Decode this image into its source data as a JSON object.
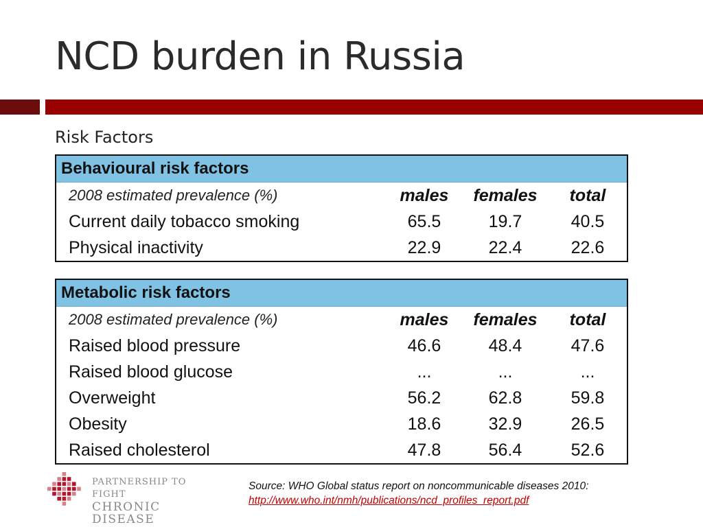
{
  "slide": {
    "title": "NCD burden in Russia",
    "subtitle": "Risk Factors"
  },
  "behavioural": {
    "heading": "Behavioural risk factors",
    "columns": {
      "label": "2008 estimated prevalence (%)",
      "males": "males",
      "females": "females",
      "total": "total"
    },
    "rows": [
      {
        "label": "Current daily tobacco smoking",
        "males": "65.5",
        "females": "19.7",
        "total": "40.5"
      },
      {
        "label": "Physical inactivity",
        "males": "22.9",
        "females": "22.4",
        "total": "22.6"
      }
    ]
  },
  "metabolic": {
    "heading": "Metabolic risk factors",
    "columns": {
      "label": "2008 estimated prevalence (%)",
      "males": "males",
      "females": "females",
      "total": "total"
    },
    "rows": [
      {
        "label": "Raised blood pressure",
        "males": "46.6",
        "females": "48.4",
        "total": "47.6"
      },
      {
        "label": "Raised blood glucose",
        "males": "...",
        "females": "...",
        "total": "..."
      },
      {
        "label": "Overweight",
        "males": "56.2",
        "females": "62.8",
        "total": "59.8"
      },
      {
        "label": "Obesity",
        "males": "18.6",
        "females": "32.9",
        "total": "26.5"
      },
      {
        "label": "Raised cholesterol",
        "males": "47.8",
        "females": "56.4",
        "total": "52.6"
      }
    ]
  },
  "logo": {
    "line1": "PARTNERSHIP TO FIGHT",
    "line2": "CHRONIC DISEASE",
    "color": "#b3172c"
  },
  "source": {
    "text": "Source:  WHO Global status report on noncommunicable diseases 2010:",
    "link": "http://www.who.int/nmh/publications/ncd_profiles_report.pdf"
  },
  "colors": {
    "accent_bar": "#990000",
    "accent_bar_dark": "#6b0d0d",
    "table_header": "#7fc2e4"
  }
}
